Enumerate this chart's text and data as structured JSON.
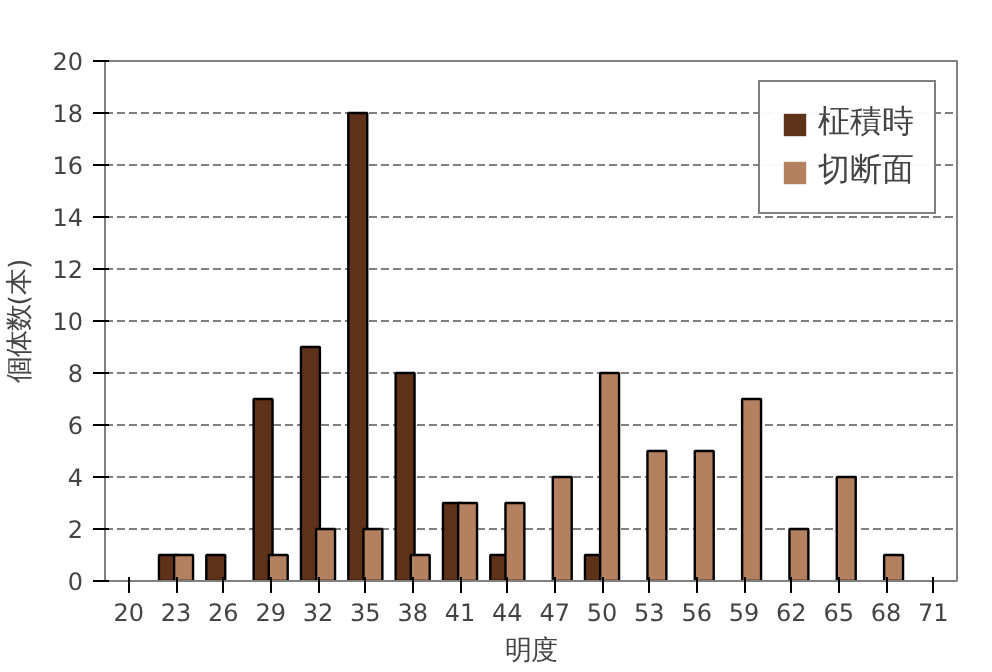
{
  "chart_data": {
    "type": "bar",
    "xlabel": "明度",
    "ylabel": "個体数(本)",
    "categories": [
      "20",
      "23",
      "26",
      "29",
      "32",
      "35",
      "38",
      "41",
      "44",
      "47",
      "50",
      "53",
      "56",
      "59",
      "62",
      "65",
      "68",
      "71"
    ],
    "series": [
      {
        "name": "柾積時",
        "color": "#5e3219",
        "values": [
          0,
          1,
          1,
          7,
          9,
          18,
          8,
          3,
          1,
          0,
          1,
          0,
          0,
          0,
          0,
          0,
          0,
          0
        ]
      },
      {
        "name": "切断面",
        "color": "#b38060",
        "values": [
          0,
          1,
          0,
          1,
          2,
          2,
          1,
          3,
          3,
          4,
          8,
          5,
          5,
          7,
          2,
          4,
          1,
          0
        ]
      }
    ],
    "ylim": [
      0,
      20
    ],
    "yticks": [
      0,
      2,
      4,
      6,
      8,
      10,
      12,
      14,
      16,
      18,
      20
    ],
    "grid": "y",
    "legend": "top right"
  }
}
